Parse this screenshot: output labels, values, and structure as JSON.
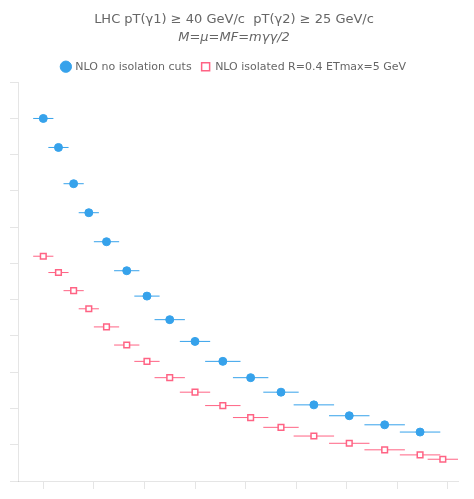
{
  "chart_data": {
    "type": "scatter",
    "title": "LHC pT(γ1) ≥ 40 GeV/c  pT(γ2) ≥ 25 GeV/c",
    "subtitle": "M=μ=MF=mγγ/2",
    "series": [
      {
        "name": "NLO no isolation cuts",
        "marker": "circle",
        "x": [
          100,
          130,
          160,
          190,
          225,
          265,
          305,
          350,
          400,
          455,
          510,
          570,
          635,
          705,
          775,
          845
        ],
        "values": [
          1.0,
          0.92,
          0.82,
          0.74,
          0.66,
          0.58,
          0.51,
          0.445,
          0.385,
          0.33,
          0.285,
          0.245,
          0.21,
          0.18,
          0.155,
          0.135
        ],
        "xerr": [
          20,
          20,
          20,
          20,
          25,
          25,
          25,
          30,
          30,
          35,
          35,
          35,
          40,
          40,
          40,
          40
        ],
        "yerr": [
          0.008,
          0.007,
          0.006,
          0.006,
          0.005,
          0.005,
          0.005,
          0.004,
          0.004,
          0.004,
          0.003,
          0.003,
          0.003,
          0.003,
          0.003,
          0.003
        ]
      },
      {
        "name": "NLO isolated R=0.4 ETmax=5 GeV",
        "marker": "square",
        "x": [
          100,
          130,
          160,
          190,
          225,
          265,
          305,
          350,
          400,
          455,
          510,
          570,
          635,
          705,
          775,
          845,
          890
        ],
        "values": [
          0.62,
          0.575,
          0.525,
          0.475,
          0.425,
          0.375,
          0.33,
          0.285,
          0.245,
          0.208,
          0.175,
          0.148,
          0.124,
          0.104,
          0.086,
          0.072,
          0.06
        ],
        "xerr": [
          20,
          20,
          20,
          20,
          25,
          25,
          25,
          30,
          30,
          35,
          35,
          35,
          40,
          40,
          40,
          40,
          30
        ],
        "yerr": [
          0.004,
          0.004,
          0.003,
          0.003,
          0.003,
          0.003,
          0.003,
          0.002,
          0.002,
          0.002,
          0.002,
          0.002,
          0.002,
          0.002,
          0.002,
          0.002,
          0.002
        ]
      }
    ],
    "xlim": [
      50,
      920
    ],
    "xticks": [
      100,
      200,
      300,
      400,
      500,
      600,
      700,
      800,
      900
    ],
    "ylim": [
      0.0,
      1.1
    ],
    "yticks": [
      0.0,
      0.1,
      0.2,
      0.3,
      0.4,
      0.5,
      0.6,
      0.7,
      0.8,
      0.9,
      1.0,
      1.1
    ],
    "tick_labels": false,
    "grid": false,
    "legend": "top"
  }
}
